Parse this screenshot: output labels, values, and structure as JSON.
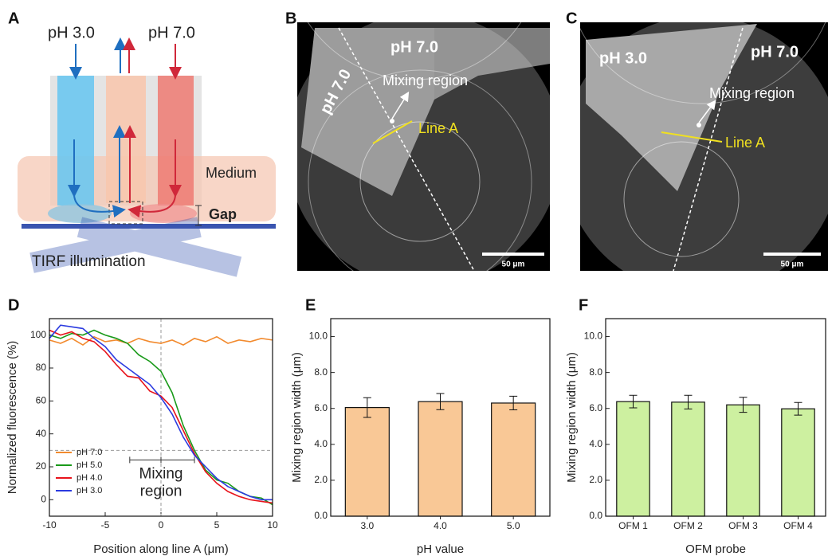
{
  "panels": {
    "A": {
      "letter": "A",
      "inlet_left": "pH 3.0",
      "inlet_right": "pH 7.0",
      "medium": "Medium",
      "gap": "Gap",
      "illumination": "TIRF illumination"
    },
    "B": {
      "letter": "B",
      "label_top": "pH 7.0",
      "label_left": "pH 7.0",
      "region": "Mixing region",
      "line": "Line A",
      "scale": "50 μm"
    },
    "C": {
      "letter": "C",
      "label_left": "pH 3.0",
      "label_right": "pH 7.0",
      "region": "Mixing region",
      "line": "Line A",
      "scale": "50 μm"
    }
  },
  "chart_data": [
    {
      "type": "line",
      "panel": "D",
      "xlabel": "Position along line A (μm)",
      "ylabel": "Normalized fluorescence (%)",
      "x": [
        -10,
        -9,
        -8,
        -7,
        -6,
        -5,
        -4,
        -3,
        -2,
        -1,
        0,
        1,
        2,
        3,
        4,
        5,
        6,
        7,
        8,
        9,
        10
      ],
      "series": [
        {
          "name": "pH 7.0",
          "color": "#f28a2e",
          "values": [
            97,
            95,
            98,
            94,
            99,
            96,
            97,
            95,
            98,
            96,
            95,
            97,
            94,
            98,
            96,
            99,
            95,
            97,
            96,
            98,
            97
          ]
        },
        {
          "name": "pH 5.0",
          "color": "#1a9a1a",
          "values": [
            100,
            98,
            101,
            100,
            103,
            100,
            98,
            95,
            88,
            84,
            78,
            65,
            45,
            30,
            18,
            12,
            10,
            5,
            2,
            1,
            -3
          ]
        },
        {
          "name": "pH 4.0",
          "color": "#e8141c",
          "values": [
            103,
            100,
            102,
            98,
            96,
            90,
            82,
            75,
            74,
            66,
            63,
            56,
            42,
            28,
            17,
            10,
            5,
            2,
            0,
            -1,
            -2
          ]
        },
        {
          "name": "pH 3.0",
          "color": "#2b3be0",
          "values": [
            98,
            106,
            105,
            104,
            98,
            93,
            85,
            80,
            75,
            70,
            62,
            52,
            38,
            27,
            20,
            13,
            8,
            5,
            2,
            0,
            0
          ]
        }
      ],
      "xlim": [
        -10,
        10
      ],
      "xticks": [
        -10,
        -5,
        0,
        5,
        10
      ],
      "ylim": [
        -10,
        110
      ],
      "yticks": [
        0,
        20,
        40,
        60,
        80,
        100
      ],
      "ref_x": 0,
      "ref_y": 30,
      "bracket": [
        -2.8,
        3
      ],
      "annotation": [
        "Mixing",
        "region"
      ],
      "legend": "lower left"
    },
    {
      "type": "bar",
      "panel": "E",
      "xlabel": "pH value",
      "ylabel": "Mixing region width (μm)",
      "categories": [
        "3.0",
        "4.0",
        "5.0"
      ],
      "values": [
        6.05,
        6.38,
        6.3
      ],
      "errors": [
        0.55,
        0.45,
        0.38
      ],
      "color": "#f9c896",
      "ylim": [
        0,
        11
      ],
      "yticks": [
        {
          "value": 0,
          "label": "0.0"
        },
        {
          "value": 2,
          "label": "2.0"
        },
        {
          "value": 4,
          "label": "4.0"
        },
        {
          "value": 6,
          "label": "6.0"
        },
        {
          "value": 8,
          "label": "8.0"
        },
        {
          "value": 10,
          "label": "10.0"
        }
      ]
    },
    {
      "type": "bar",
      "panel": "F",
      "xlabel": "OFM probe",
      "ylabel": "Mixing region width (μm)",
      "categories": [
        "OFM 1",
        "OFM 2",
        "OFM 3",
        "OFM 4"
      ],
      "values": [
        6.38,
        6.35,
        6.2,
        5.98
      ],
      "errors": [
        0.35,
        0.38,
        0.42,
        0.35
      ],
      "color": "#cdf0a0",
      "ylim": [
        0,
        11
      ],
      "yticks": [
        {
          "value": 0,
          "label": "0.0"
        },
        {
          "value": 2,
          "label": "2.0"
        },
        {
          "value": 4,
          "label": "4.0"
        },
        {
          "value": 6,
          "label": "6.0"
        },
        {
          "value": 8,
          "label": "8.0"
        },
        {
          "value": 10,
          "label": "10.0"
        }
      ]
    }
  ]
}
